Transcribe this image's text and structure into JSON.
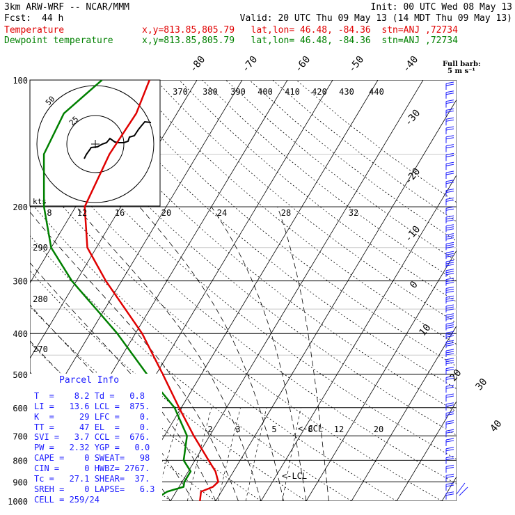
{
  "header": {
    "model": "3km ARW-WRF -- NCAR/MMM",
    "init": "Init: 00 UTC Wed 08 May 13",
    "fcst_label": "Fcst:",
    "fcst_value": "44 h",
    "valid": "Valid: 20 UTC Thu 09 May 13 (14 MDT Thu 09 May 13)",
    "temp_label": "Temperature",
    "dew_label": "Dewpoint temperature",
    "location": "x,y=813.85,805.79   lat,lon= 46.48, -84.36  stn=ANJ ,72734"
  },
  "legend": {
    "barb_title": "Full barb:",
    "barb_unit": "5 m s⁻¹"
  },
  "hodograph": {
    "units": "kts",
    "ring_labels": [
      "25",
      "50"
    ],
    "speed_labels": [
      "8",
      "12",
      "16",
      "20",
      "24",
      "28",
      "32"
    ]
  },
  "theta_labels": [
    "370",
    "380",
    "390",
    "400",
    "410",
    "420",
    "430",
    "440"
  ],
  "theta_left_labels": [
    "290",
    "280",
    "270"
  ],
  "mixing_ratio_labels": [
    "2",
    "3",
    "5",
    "8",
    "12",
    "20"
  ],
  "annotations": {
    "ccl": "<-CCL",
    "lcl": "<-LCL"
  },
  "parcel": {
    "title": "Parcel Info",
    "rows": [
      "T  =    8.2 Td =   0.8",
      "LI =   13.6 LCL =  875.",
      "K  =     29 LFC =    0.",
      "TT =     47 EL  =    0.",
      "SVI =   3.7 CCL =  676.",
      "PW =   2.32 YGP =   0.0",
      "CAPE =    0 SWEAT=   98",
      "CIN =     0 HWBZ= 2767.",
      "Tc =   27.1 SHEAR=  37.",
      "SREH =    0 LAPSE=   6.3",
      "CELL = 259/24"
    ]
  },
  "colors": {
    "temperature": "#e00000",
    "dewpoint": "#008000",
    "parcel_text": "#1a1aff",
    "barbs": "#1a1aff"
  },
  "chart_data": {
    "type": "skew-t",
    "title": "3km ARW-WRF -- NCAR/MMM",
    "ylabel": "Pressure (hPa)",
    "y_scale": "log",
    "ylim": [
      1000,
      100
    ],
    "pressure_levels": [
      100,
      200,
      300,
      400,
      500,
      600,
      700,
      800,
      900,
      1000
    ],
    "isotherm_labels": [
      40,
      30,
      20,
      10,
      0,
      -10,
      -20,
      -30,
      -40,
      -50,
      -60,
      -70,
      -80
    ],
    "series": [
      {
        "name": "Temperature",
        "color": "#e00000",
        "points": [
          {
            "p": 1000,
            "t": 6.5
          },
          {
            "p": 950,
            "t": 5.5
          },
          {
            "p": 925,
            "t": 7.5
          },
          {
            "p": 900,
            "t": 8.0
          },
          {
            "p": 850,
            "t": 6.0
          },
          {
            "p": 800,
            "t": 3.0
          },
          {
            "p": 700,
            "t": -3.5
          },
          {
            "p": 600,
            "t": -10.5
          },
          {
            "p": 500,
            "t": -18.5
          },
          {
            "p": 400,
            "t": -28.5
          },
          {
            "p": 300,
            "t": -43.5
          },
          {
            "p": 250,
            "t": -52.0
          },
          {
            "p": 200,
            "t": -58.0
          },
          {
            "p": 150,
            "t": -59.5
          },
          {
            "p": 120,
            "t": -59.0
          },
          {
            "p": 100,
            "t": -60.5
          }
        ]
      },
      {
        "name": "Dewpoint temperature",
        "color": "#008000",
        "points": [
          {
            "p": 1000,
            "t": -4.0
          },
          {
            "p": 950,
            "t": -2.0
          },
          {
            "p": 925,
            "t": 1.0
          },
          {
            "p": 900,
            "t": 0.5
          },
          {
            "p": 850,
            "t": 0.5
          },
          {
            "p": 800,
            "t": -2.5
          },
          {
            "p": 700,
            "t": -5.0
          },
          {
            "p": 600,
            "t": -11.5
          },
          {
            "p": 500,
            "t": -22.0
          },
          {
            "p": 400,
            "t": -34.0
          },
          {
            "p": 300,
            "t": -51.0
          },
          {
            "p": 250,
            "t": -60.0
          },
          {
            "p": 200,
            "t": -67.0
          },
          {
            "p": 150,
            "t": -74.0
          },
          {
            "p": 120,
            "t": -75.0
          },
          {
            "p": 100,
            "t": -71.0
          }
        ]
      }
    ]
  }
}
